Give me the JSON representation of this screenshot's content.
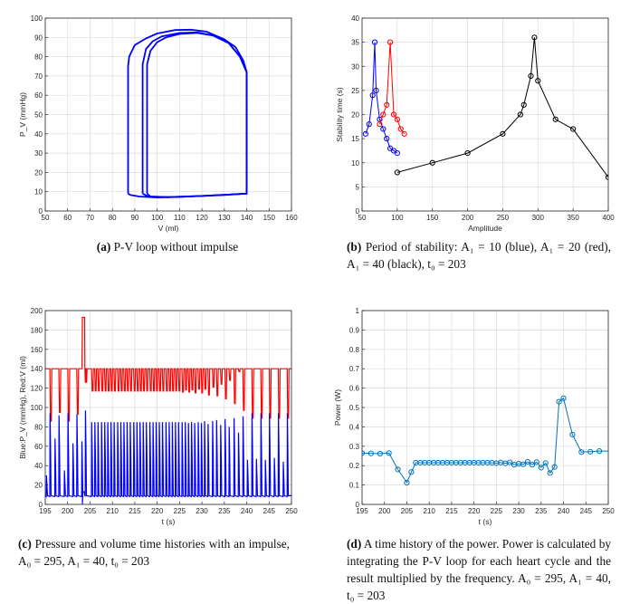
{
  "captions": {
    "a": {
      "label": "(a)",
      "text": "P-V loop without impulse"
    },
    "b": {
      "label": "(b)",
      "text": "Period of stability: A₁ = 10 (blue), A₁ = 20 (red), A₁ = 40 (black), t₀ = 203"
    },
    "c": {
      "label": "(c)",
      "text": "Pressure and volume time histories with an impulse, A₀ = 295, A₁ = 40, t₀ = 203"
    },
    "d": {
      "label": "(d)",
      "text": "A time history of the power. Power is calculated by integrating the P-V loop for each heart cycle and the result multiplied by the frequency. A₀ = 295, A₁ = 40, t₀ = 203"
    }
  },
  "chart_data": [
    {
      "id": "a",
      "type": "line",
      "xlabel": "V (ml)",
      "ylabel": "P_V (mmHg)",
      "xlim": [
        50,
        160
      ],
      "ylim": [
        0,
        100
      ],
      "xticks": [
        "50",
        "60",
        "70",
        "80",
        "90",
        "100",
        "110",
        "120",
        "130",
        "140",
        "150",
        "160"
      ],
      "yticks": [
        "0",
        "10",
        "20",
        "30",
        "40",
        "50",
        "60",
        "70",
        "80",
        "90",
        "100"
      ],
      "grid": true,
      "color": "#0000ff",
      "series": [
        {
          "x": [
            87,
            87,
            87.5,
            90,
            95,
            100,
            108,
            115,
            122,
            130,
            135,
            138.5,
            140,
            140,
            130,
            120,
            110,
            100,
            92,
            88,
            87
          ],
          "y": [
            9,
            75,
            80,
            86,
            89.5,
            92,
            93.8,
            94,
            93,
            89,
            85,
            78,
            72,
            9,
            8.3,
            7.8,
            7.3,
            7,
            7.5,
            8.3,
            9
          ]
        },
        {
          "x": [
            93.5,
            93.5,
            95,
            98,
            102,
            110,
            118,
            125,
            132,
            137,
            140,
            140,
            120,
            105,
            96,
            93.5
          ],
          "y": [
            9,
            76,
            84,
            88,
            90.5,
            92.3,
            92.6,
            91,
            87,
            80,
            72,
            9,
            7.8,
            7.2,
            7.5,
            9
          ]
        },
        {
          "x": [
            95.5,
            95.5,
            97,
            100,
            104,
            110,
            118,
            125,
            132,
            137,
            140,
            140,
            120,
            105,
            97,
            95.5
          ],
          "y": [
            9,
            76,
            83,
            87.5,
            90,
            91.8,
            92.3,
            91,
            87,
            80,
            72,
            9,
            7.8,
            7.2,
            7.5,
            9
          ]
        }
      ]
    },
    {
      "id": "b",
      "type": "line",
      "xlabel": "Amplitude",
      "ylabel": "Stability time (s)",
      "xlim": [
        50,
        400
      ],
      "ylim": [
        0,
        40
      ],
      "xticks": [
        "50",
        "100",
        "150",
        "200",
        "250",
        "300",
        "350",
        "400"
      ],
      "yticks": [
        "0",
        "5",
        "10",
        "15",
        "20",
        "25",
        "30",
        "35",
        "40"
      ],
      "grid": true,
      "marker": "circle",
      "series": [
        {
          "color": "#0000ff",
          "x": [
            55,
            60,
            65,
            68,
            70,
            75,
            80,
            85,
            90,
            95,
            100
          ],
          "y": [
            16,
            18,
            24,
            35,
            25,
            19,
            17,
            15,
            13,
            12.5,
            12
          ]
        },
        {
          "color": "#ff0000",
          "x": [
            75,
            80,
            85,
            90,
            95,
            100,
            105,
            110
          ],
          "y": [
            18,
            20,
            22,
            35,
            20,
            19,
            17,
            16
          ]
        },
        {
          "color": "#000000",
          "x": [
            100,
            150,
            200,
            250,
            275,
            280,
            290,
            295,
            300,
            325,
            350,
            400
          ],
          "y": [
            8,
            10,
            12,
            16,
            20,
            22,
            28,
            36,
            27,
            19,
            17,
            7
          ]
        }
      ]
    },
    {
      "id": "c",
      "type": "line",
      "xlabel": "t (s)",
      "ylabel": "Blue:P_V (mmHg),     Red:V (ml)",
      "xlim": [
        195,
        250
      ],
      "ylim": [
        0,
        200
      ],
      "xticks": [
        "195",
        "200",
        "205",
        "210",
        "215",
        "220",
        "225",
        "230",
        "235",
        "240",
        "245",
        "250"
      ],
      "yticks": [
        "0",
        "20",
        "40",
        "60",
        "80",
        "100",
        "120",
        "140",
        "160",
        "180",
        "200"
      ],
      "grid": true,
      "pv_color": "#0000ff",
      "v_color": "#ff0000",
      "pv_baseline": 8,
      "v_baseline": 140,
      "impulse": {
        "t_start": 203.3,
        "t_end": 203.8,
        "V": 193,
        "V_after": 126
      },
      "beats_columns": [
        "t",
        "pv_peak",
        "v_min"
      ],
      "beats": [
        [
          195.3,
          30,
          null
        ],
        [
          196.1,
          94,
          86
        ],
        [
          197.2,
          68,
          null
        ],
        [
          198.1,
          92,
          95
        ],
        [
          199.3,
          35,
          null
        ],
        [
          200.1,
          94,
          86
        ],
        [
          201.2,
          63,
          null
        ],
        [
          202.1,
          93,
          93
        ],
        [
          203.2,
          65,
          null
        ],
        [
          204.0,
          97,
          126
        ],
        [
          205.4,
          85,
          117
        ],
        [
          206.1,
          85,
          117
        ],
        [
          206.8,
          85,
          117
        ],
        [
          207.6,
          85,
          117
        ],
        [
          208.3,
          85,
          117
        ],
        [
          209.0,
          85,
          117
        ],
        [
          209.7,
          85,
          117
        ],
        [
          210.4,
          85,
          117
        ],
        [
          211.2,
          85,
          117
        ],
        [
          211.9,
          85,
          117
        ],
        [
          212.6,
          85,
          117
        ],
        [
          213.3,
          85,
          117
        ],
        [
          214.0,
          85,
          117
        ],
        [
          214.8,
          85,
          117
        ],
        [
          215.5,
          85,
          117
        ],
        [
          216.2,
          85,
          117
        ],
        [
          216.9,
          85,
          117
        ],
        [
          217.6,
          85,
          117
        ],
        [
          218.4,
          85,
          117
        ],
        [
          219.1,
          85,
          117
        ],
        [
          219.8,
          85,
          117
        ],
        [
          220.5,
          85,
          117
        ],
        [
          221.2,
          85,
          117
        ],
        [
          222.0,
          85,
          117
        ],
        [
          222.7,
          85,
          117
        ],
        [
          223.4,
          85,
          117
        ],
        [
          224.1,
          85,
          117
        ],
        [
          224.8,
          85,
          117
        ],
        [
          225.6,
          85,
          116
        ],
        [
          226.3,
          85,
          118
        ],
        [
          227.0,
          84,
          116
        ],
        [
          227.7,
          85,
          118
        ],
        [
          228.4,
          84,
          115
        ],
        [
          229.2,
          85,
          119
        ],
        [
          229.9,
          84,
          115
        ],
        [
          230.6,
          86,
          119
        ],
        [
          231.4,
          83,
          113
        ],
        [
          232.4,
          86,
          121
        ],
        [
          233.3,
          87,
          112
        ],
        [
          234.2,
          82,
          124
        ],
        [
          235.2,
          88,
          109
        ],
        [
          236.1,
          80,
          128
        ],
        [
          237.2,
          89,
          104
        ],
        [
          238.2,
          74,
          137
        ],
        [
          239.2,
          91,
          97
        ],
        [
          240.2,
          46,
          null
        ],
        [
          241.2,
          94,
          89
        ],
        [
          242.2,
          47,
          null
        ],
        [
          243.2,
          94,
          89
        ],
        [
          244.2,
          46,
          null
        ],
        [
          245.1,
          94,
          89
        ],
        [
          246.2,
          48,
          null
        ],
        [
          247.1,
          94,
          89
        ],
        [
          248.2,
          44,
          null
        ],
        [
          249.1,
          94,
          89
        ]
      ]
    },
    {
      "id": "d",
      "type": "line",
      "xlabel": "t (s)",
      "ylabel": "Power (W)",
      "xlim": [
        195,
        250
      ],
      "ylim": [
        0,
        1
      ],
      "xticks": [
        "195",
        "200",
        "205",
        "210",
        "215",
        "220",
        "225",
        "230",
        "235",
        "240",
        "245",
        "250"
      ],
      "yticks": [
        "0",
        "0.1",
        "0.2",
        "0.3",
        "0.4",
        "0.5",
        "0.6",
        "0.7",
        "0.8",
        "0.9",
        "1"
      ],
      "grid": true,
      "marker": "circle",
      "color": "#0072bd",
      "series": [
        {
          "x": [
            195,
            197,
            199,
            201,
            203,
            205,
            206,
            207,
            208,
            209,
            210,
            211,
            212,
            213,
            214,
            215,
            216,
            217,
            218,
            219,
            220,
            221,
            222,
            223,
            224,
            225,
            226,
            227,
            228,
            229,
            230,
            231,
            232,
            233,
            234,
            235,
            236,
            237,
            238,
            239,
            240,
            242,
            244,
            246,
            248
          ],
          "y": [
            0.265,
            0.263,
            0.262,
            0.265,
            0.18,
            0.112,
            0.167,
            0.215,
            0.215,
            0.215,
            0.215,
            0.215,
            0.215,
            0.215,
            0.215,
            0.215,
            0.215,
            0.215,
            0.215,
            0.215,
            0.215,
            0.215,
            0.215,
            0.215,
            0.215,
            0.213,
            0.216,
            0.212,
            0.217,
            0.205,
            0.21,
            0.207,
            0.22,
            0.205,
            0.218,
            0.19,
            0.213,
            0.162,
            0.193,
            0.53,
            0.548,
            0.36,
            0.27,
            0.272,
            0.275
          ],
          "line_end": [
            250,
            0.275
          ]
        }
      ]
    }
  ]
}
